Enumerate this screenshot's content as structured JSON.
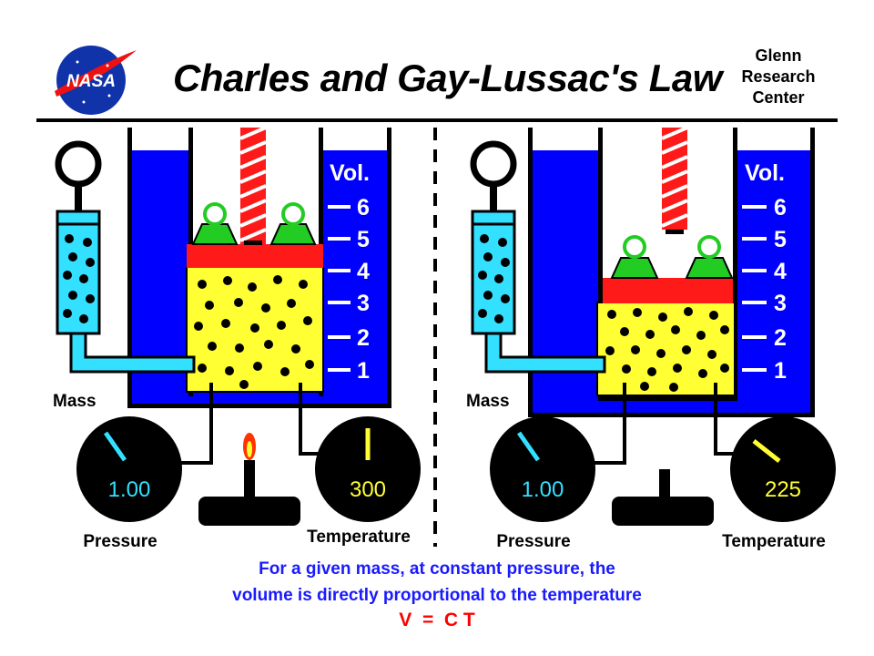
{
  "header": {
    "logo_text": "NASA",
    "title": "Charles and Gay-Lussac's Law",
    "org_line1": "Glenn",
    "org_line2": "Research",
    "org_line3": "Center"
  },
  "left_panel": {
    "volume_label": "Vol.",
    "scale": [
      "6",
      "5",
      "4",
      "3",
      "2",
      "1"
    ],
    "mass_label": "Mass",
    "pressure_value": "1.00",
    "pressure_label": "Pressure",
    "temperature_value": "300",
    "temperature_label": "Temperature",
    "piston_level": 4.5
  },
  "right_panel": {
    "volume_label": "Vol.",
    "scale": [
      "6",
      "5",
      "4",
      "3",
      "2",
      "1"
    ],
    "mass_label": "Mass",
    "pressure_value": "1.00",
    "pressure_label": "Pressure",
    "temperature_value": "225",
    "temperature_label": "Temperature",
    "piston_level": 3.4
  },
  "caption": {
    "line1": "For a given mass, at constant pressure, the",
    "line2": "volume is directly proportional to the temperature",
    "formula": "V  =  C T"
  },
  "colors": {
    "blue": "#0000ff",
    "cyan": "#33e0ff",
    "yellow": "#ffff33",
    "red": "#ff1a1a",
    "green": "#22cc22",
    "gauge_text_pressure": "#33e0ff",
    "gauge_text_temperature": "#ffff33"
  }
}
